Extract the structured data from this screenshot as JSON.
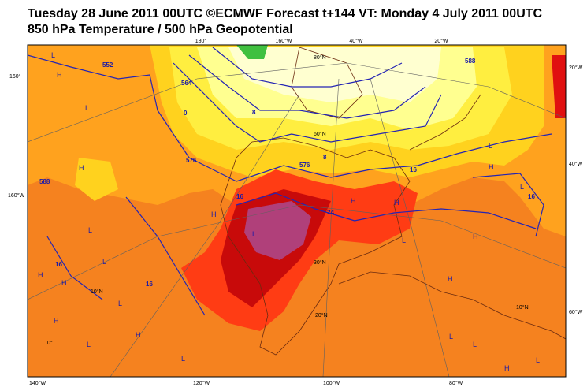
{
  "header": {
    "title": "Tuesday 28 June 2011 00UTC ©ECMWF Forecast t+144 VT: Monday 4 July 2011 00UTC",
    "subtitle": "850 hPa Temperature / 500 hPa Geopotential"
  },
  "frame_labels": {
    "top": [
      "180°",
      "160°W",
      "40°W",
      "20°W"
    ],
    "bottom": [
      "140°W",
      "120°W",
      "100°W",
      "80°W"
    ],
    "left": [
      "160°",
      "160°W"
    ],
    "right": [
      "20°W",
      "40°W",
      "60°W"
    ]
  },
  "grid_labels": [
    "80°N",
    "60°N",
    "30°N",
    "20°N",
    "10°N",
    "0°",
    "10°N"
  ],
  "contour_labels": [
    "552",
    "564",
    "576",
    "588",
    "576",
    "588",
    "16",
    "16",
    "16",
    "8",
    "0",
    "24",
    "16",
    "8",
    "16"
  ],
  "pressure_centers": [
    "L",
    "H",
    "L",
    "H",
    "L",
    "H",
    "H",
    "L",
    "L",
    "H",
    "L",
    "H",
    "L",
    "H",
    "L",
    "H",
    "H",
    "L",
    "H",
    "L",
    "H",
    "L",
    "H",
    "L",
    "L",
    "H",
    "L"
  ]
}
